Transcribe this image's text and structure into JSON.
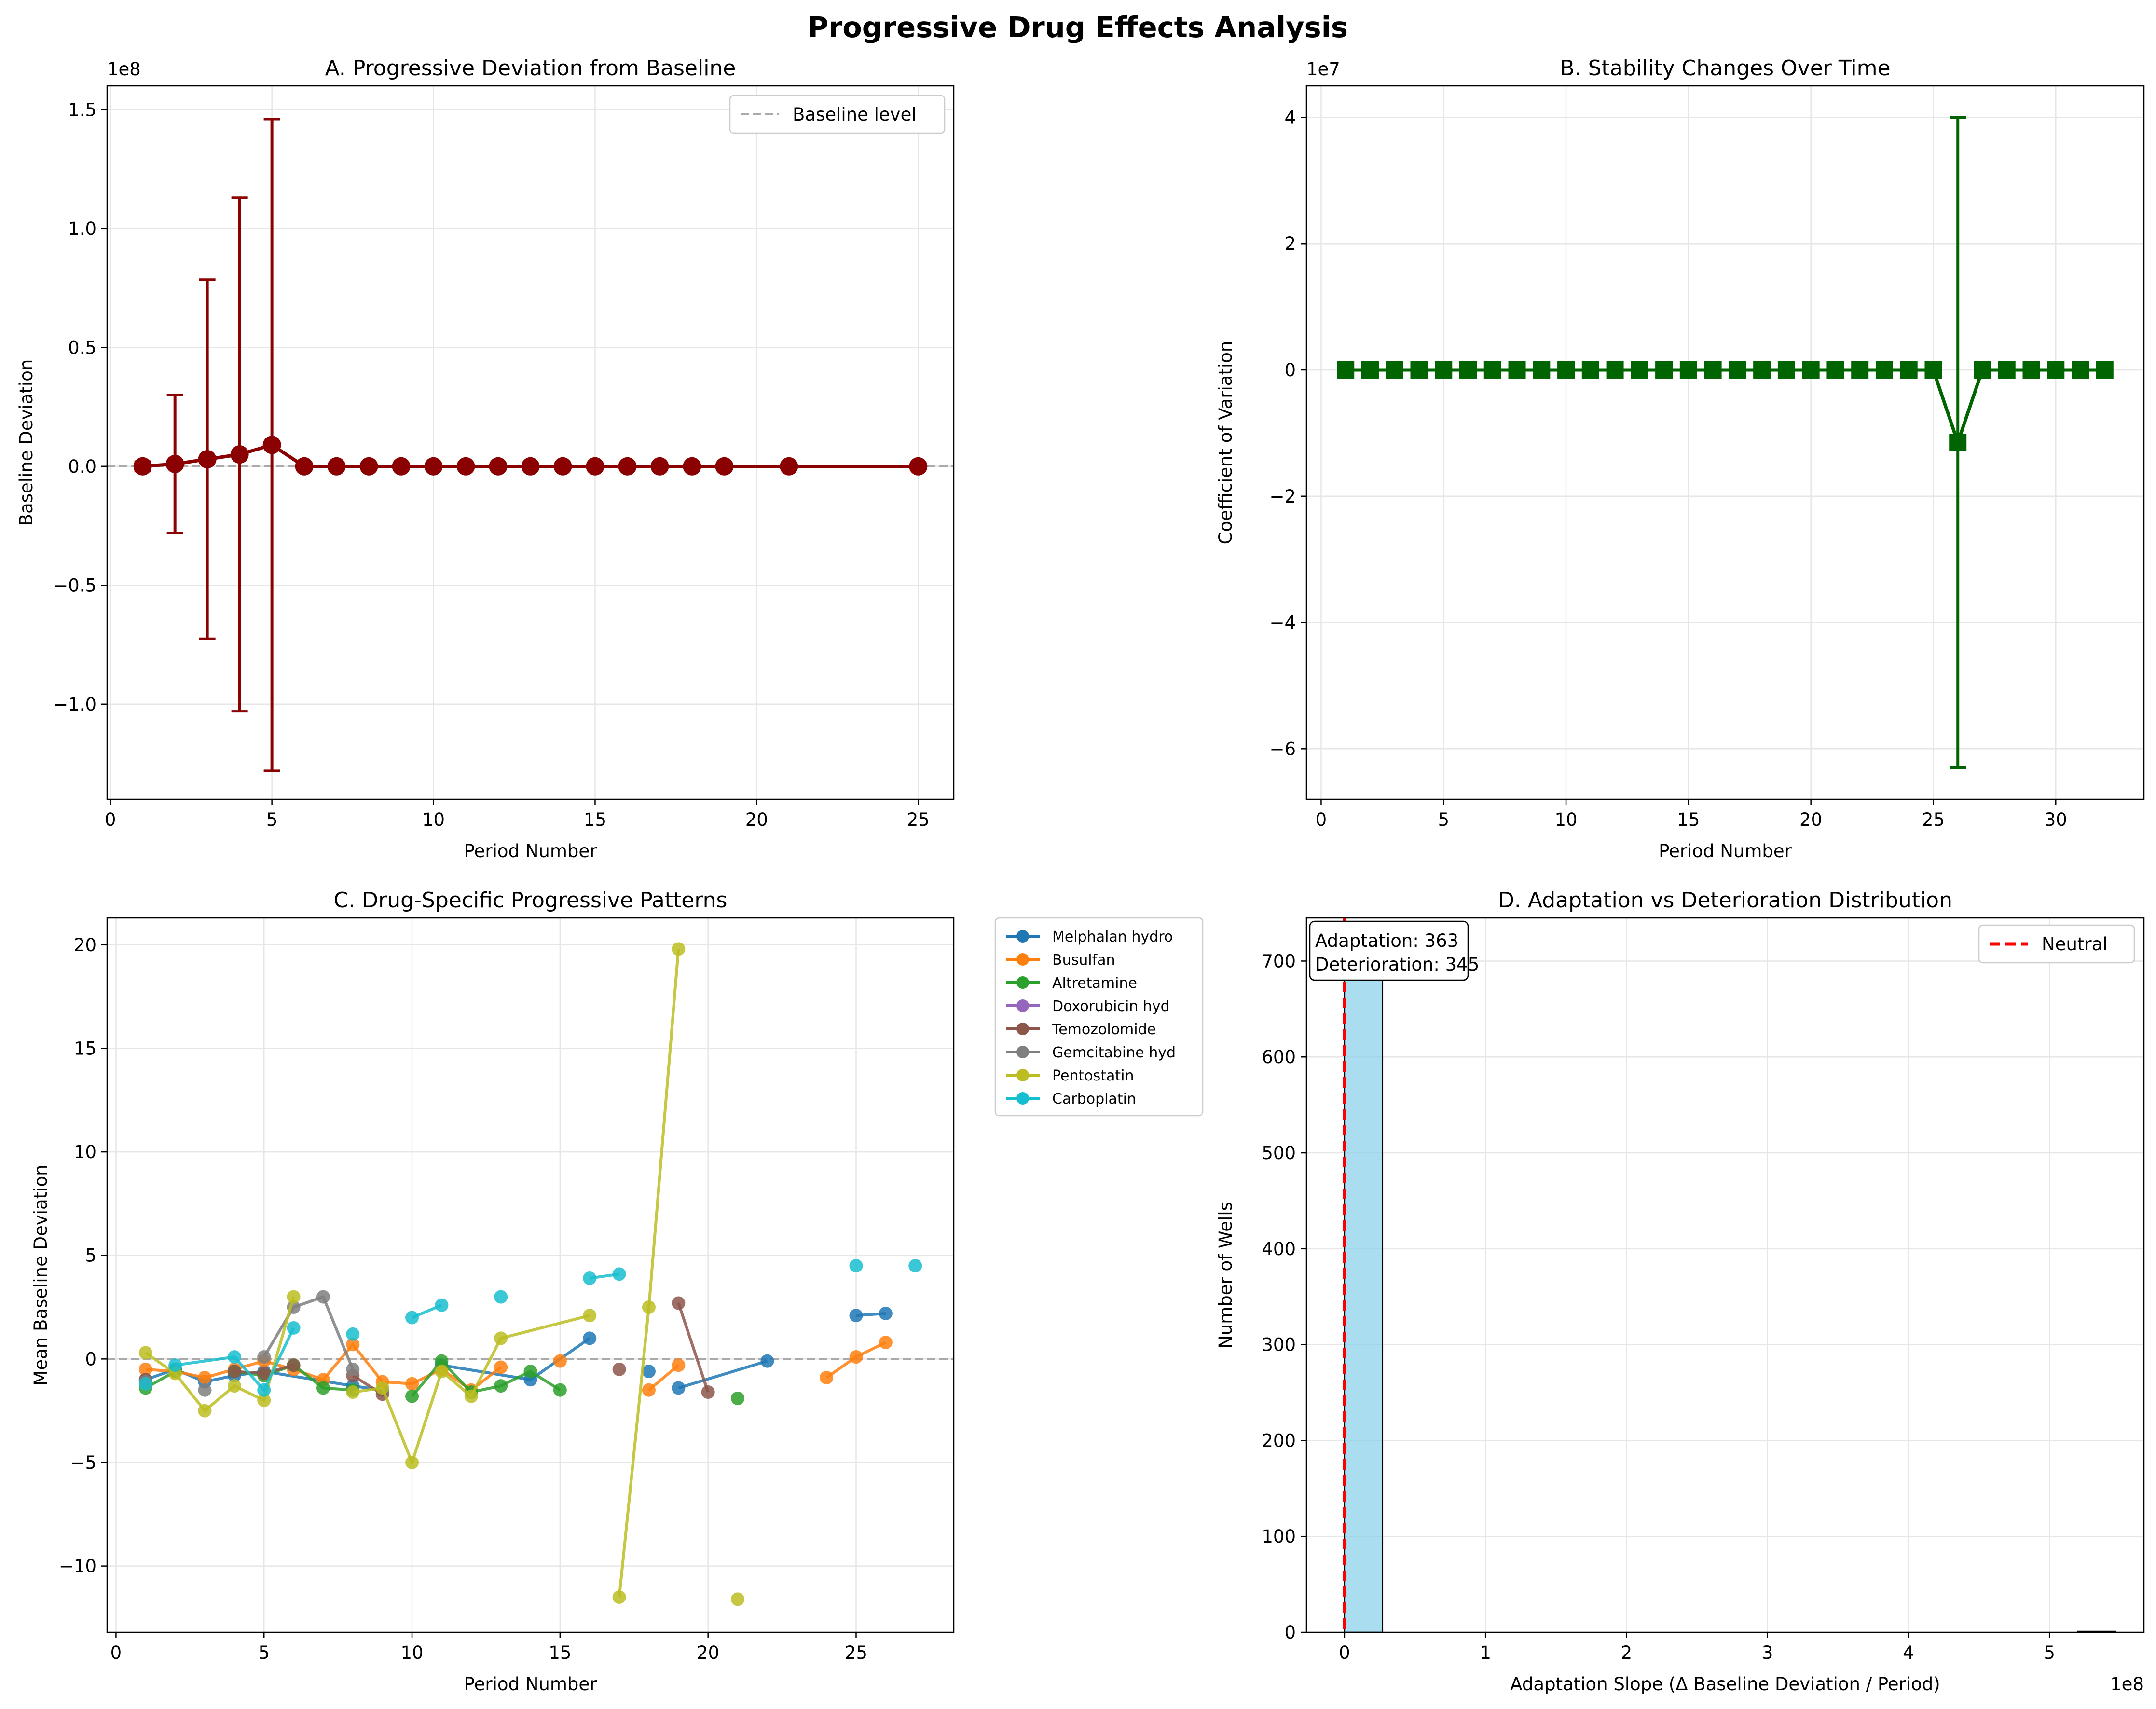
{
  "figure": {
    "suptitle": "Progressive Drug Effects Analysis"
  },
  "colors": {
    "panelA": "#8b0000",
    "panelB": "#006400",
    "histFill": "#87ceeb",
    "neutral": "#ff0000",
    "baseline": "#aaaaaa",
    "grid": "#e6e6e6"
  },
  "chart_data": [
    {
      "panel": "A",
      "type": "line",
      "title": "A. Progressive Deviation from Baseline",
      "xlabel": "Period Number",
      "ylabel": "Baseline Deviation",
      "y_multiplier": "1e8",
      "xlim": [
        -0.1,
        26.1
      ],
      "ylim": [
        -1.4,
        1.6
      ],
      "xticks": [
        0,
        5,
        10,
        15,
        20,
        25
      ],
      "yticks": [
        -1.0,
        -0.5,
        0.0,
        0.5,
        1.0,
        1.5
      ],
      "ytick_labels": [
        "−1.0",
        "−0.5",
        "0.0",
        "0.5",
        "1.0",
        "1.5"
      ],
      "baseline": 0,
      "legend": {
        "position": "top-right",
        "entries": [
          "Baseline level"
        ]
      },
      "grid": true,
      "series": [
        {
          "x": [
            1,
            2,
            3,
            4,
            5,
            6,
            7,
            8,
            9,
            10,
            11,
            12,
            13,
            14,
            15,
            16,
            17,
            18,
            19,
            21,
            25
          ],
          "y": [
            0.0,
            0.01,
            0.03,
            0.05,
            0.09,
            0,
            0,
            0,
            0,
            0,
            0,
            0,
            0,
            0,
            0,
            0,
            0,
            0,
            0,
            0,
            0
          ],
          "yerr": [
            0.02,
            0.29,
            0.755,
            1.08,
            1.37,
            0,
            0,
            0,
            0,
            0,
            0,
            0,
            0,
            0,
            0,
            0,
            0,
            0,
            0,
            0,
            0
          ]
        }
      ]
    },
    {
      "panel": "B",
      "type": "line",
      "title": "B. Stability Changes Over Time",
      "xlabel": "Period Number",
      "ylabel": "Coefficient of Variation",
      "y_multiplier": "1e7",
      "xlim": [
        -0.6,
        33.6
      ],
      "ylim": [
        -6.8,
        4.5
      ],
      "xticks": [
        0,
        5,
        10,
        15,
        20,
        25,
        30
      ],
      "yticks": [
        -6,
        -4,
        -2,
        0,
        2,
        4
      ],
      "ytick_labels": [
        "−6",
        "−4",
        "−2",
        "0",
        "2",
        "4"
      ],
      "grid": true,
      "series": [
        {
          "x": [
            1,
            2,
            3,
            4,
            5,
            6,
            7,
            8,
            9,
            10,
            11,
            12,
            13,
            14,
            15,
            16,
            17,
            18,
            19,
            20,
            21,
            22,
            23,
            24,
            25,
            26,
            27,
            28,
            29,
            30,
            31,
            32
          ],
          "y": [
            0,
            0,
            0,
            0,
            0,
            0,
            0,
            0,
            0,
            0,
            0,
            0,
            0,
            0,
            0,
            0,
            0,
            0,
            0,
            0,
            0,
            0,
            0,
            0,
            0,
            -1.15,
            0,
            0,
            0,
            0,
            0,
            0
          ],
          "yerr": [
            0,
            0,
            0,
            0,
            0,
            0,
            0,
            0,
            0,
            0,
            0,
            0,
            0,
            0,
            0,
            0,
            0,
            0,
            0,
            0,
            0,
            0,
            0,
            0,
            0,
            5.15,
            0,
            0,
            0,
            0,
            0,
            0
          ]
        }
      ]
    },
    {
      "panel": "C",
      "type": "line",
      "title": "C. Drug-Specific Progressive Patterns",
      "xlabel": "Period Number",
      "ylabel": "Mean Baseline Deviation",
      "xlim": [
        -0.3,
        28.3
      ],
      "ylim": [
        -13.2,
        21.3
      ],
      "xticks": [
        0,
        5,
        10,
        15,
        20,
        25
      ],
      "yticks": [
        -10,
        -5,
        0,
        5,
        10,
        15,
        20
      ],
      "ytick_labels": [
        "−10",
        "−5",
        "0",
        "5",
        "10",
        "15",
        "20"
      ],
      "baseline": 0,
      "legend": {
        "position": "outside-right"
      },
      "grid": true,
      "series": [
        {
          "name": "Melphalan hydro",
          "color": "#1f77b4",
          "points": [
            [
              1,
              -1.0
            ],
            [
              2,
              -0.5
            ],
            [
              3,
              -1.1
            ],
            [
              4,
              -0.8
            ],
            [
              5,
              -0.6
            ],
            [
              8,
              -1.3
            ],
            [
              9,
              -1.5
            ],
            [
              11,
              -0.3
            ],
            [
              14,
              -1.0
            ],
            [
              16,
              1.0
            ],
            [
              18,
              -0.6
            ],
            [
              19,
              -1.4
            ],
            [
              22,
              -0.1
            ],
            [
              25,
              2.1
            ],
            [
              26,
              2.2
            ]
          ],
          "breaks_after": [
            6,
            9,
            10,
            12
          ]
        },
        {
          "name": "Busulfan",
          "color": "#ff7f0e",
          "points": [
            [
              1,
              -0.5
            ],
            [
              2,
              -0.6
            ],
            [
              3,
              -0.9
            ],
            [
              4,
              -0.5
            ],
            [
              5,
              -0.1
            ],
            [
              6,
              -0.5
            ],
            [
              7,
              -1.0
            ],
            [
              8,
              0.7
            ],
            [
              9,
              -1.1
            ],
            [
              10,
              -1.2
            ],
            [
              11,
              -0.5
            ],
            [
              12,
              -1.5
            ],
            [
              13,
              -0.4
            ],
            [
              15,
              -0.1
            ],
            [
              18,
              -1.5
            ],
            [
              19,
              -0.3
            ],
            [
              24,
              -0.9
            ],
            [
              25,
              0.1
            ],
            [
              26,
              0.8
            ]
          ],
          "breaks_after": [
            12,
            13,
            15
          ]
        },
        {
          "name": "Altretamine",
          "color": "#2ca02c",
          "points": [
            [
              1,
              -1.4
            ],
            [
              2,
              -0.6
            ],
            [
              4,
              -0.6
            ],
            [
              5,
              -0.8
            ],
            [
              6,
              -0.3
            ],
            [
              7,
              -1.4
            ],
            [
              8,
              -1.5
            ],
            [
              10,
              -1.8
            ],
            [
              11,
              -0.1
            ],
            [
              12,
              -1.6
            ],
            [
              13,
              -1.3
            ],
            [
              14,
              -0.6
            ],
            [
              15,
              -1.5
            ],
            [
              21,
              -1.9
            ]
          ],
          "breaks_after": [
            1,
            6,
            12
          ]
        },
        {
          "name": "Doxorubicin hyd",
          "color": "#9467bd",
          "points": [],
          "breaks_after": []
        },
        {
          "name": "Temozolomide",
          "color": "#8c564b",
          "points": [
            [
              1,
              -1.0
            ],
            [
              4,
              -0.6
            ],
            [
              5,
              -0.7
            ],
            [
              6,
              -0.3
            ],
            [
              8,
              -0.8
            ],
            [
              9,
              -1.7
            ],
            [
              17,
              -0.5
            ],
            [
              19,
              2.7
            ],
            [
              20,
              -1.6
            ]
          ],
          "breaks_after": [
            0,
            3,
            5,
            6
          ]
        },
        {
          "name": "Gemcitabine hyd",
          "color": "#7f7f7f",
          "points": [
            [
              1,
              -1.1
            ],
            [
              3,
              -1.5
            ],
            [
              5,
              0.1
            ],
            [
              6,
              2.5
            ],
            [
              7,
              3.0
            ],
            [
              8,
              -0.5
            ]
          ],
          "breaks_after": [
            0,
            1
          ]
        },
        {
          "name": "Pentostatin",
          "color": "#bcbd22",
          "points": [
            [
              1,
              0.3
            ],
            [
              2,
              -0.7
            ],
            [
              3,
              -2.5
            ],
            [
              4,
              -1.3
            ],
            [
              5,
              -2.0
            ],
            [
              6,
              3.0
            ],
            [
              8,
              -1.6
            ],
            [
              9,
              -1.4
            ],
            [
              10,
              -5.0
            ],
            [
              11,
              -0.6
            ],
            [
              12,
              -1.8
            ],
            [
              13,
              1.0
            ],
            [
              16,
              2.1
            ],
            [
              17,
              -11.5
            ],
            [
              18,
              2.5
            ],
            [
              19,
              19.8
            ],
            [
              21,
              -11.6
            ]
          ],
          "breaks_after": [
            5,
            12,
            15
          ]
        },
        {
          "name": "Carboplatin",
          "color": "#17becf",
          "points": [
            [
              1,
              -1.2
            ],
            [
              2,
              -0.3
            ],
            [
              4,
              0.1
            ],
            [
              5,
              -1.5
            ],
            [
              6,
              1.5
            ],
            [
              8,
              1.2
            ],
            [
              10,
              2.0
            ],
            [
              11,
              2.6
            ],
            [
              13,
              3.0
            ],
            [
              16,
              3.9
            ],
            [
              17,
              4.1
            ],
            [
              25,
              4.5
            ],
            [
              27,
              4.5
            ]
          ],
          "breaks_after": [
            0,
            4,
            5,
            7,
            8,
            10,
            11
          ]
        }
      ]
    },
    {
      "panel": "D",
      "type": "bar",
      "title": "D. Adaptation vs Deterioration Distribution",
      "xlabel": "Adaptation Slope (Δ Baseline Deviation / Period)",
      "ylabel": "Number of Wells",
      "x_multiplier": "1e8",
      "xlim": [
        -0.27,
        5.67
      ],
      "ylim": [
        0,
        745
      ],
      "xticks": [
        0,
        1,
        2,
        3,
        4,
        5
      ],
      "yticks": [
        0,
        100,
        200,
        300,
        400,
        500,
        600,
        700
      ],
      "grid": true,
      "bins": [
        {
          "x0": 0.0,
          "x1": 0.27,
          "count": 707
        },
        {
          "x0": 5.2,
          "x1": 5.47,
          "count": 1
        }
      ],
      "neutral_line": 0,
      "annotation": [
        "Adaptation: 363",
        "Deterioration: 345"
      ],
      "legend": {
        "position": "top-right",
        "entries": [
          "Neutral"
        ]
      }
    }
  ]
}
